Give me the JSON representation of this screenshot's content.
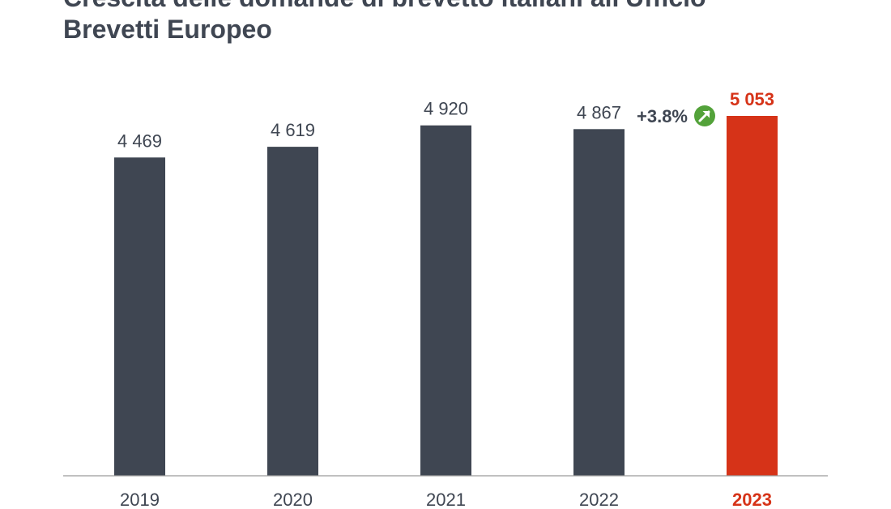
{
  "chart_data": {
    "type": "bar",
    "title": "Crescita delle domande di brevetto italiani all'Ufficio\nBrevetti Europeo",
    "xlabel": "",
    "ylabel": "",
    "categories": [
      "2019",
      "2020",
      "2021",
      "2022",
      "2023"
    ],
    "values": [
      4469,
      4619,
      4920,
      4867,
      5053
    ],
    "value_labels": [
      "4 469",
      "4 619",
      "4 920",
      "4 867",
      "5 053"
    ],
    "highlight_index": 4,
    "ylim": [
      0,
      5400
    ],
    "grid": false,
    "legend": "none",
    "annotation": {
      "text": "+3.8%",
      "icon": "up-right-arrow-icon",
      "position": "between 2022 and 2023"
    },
    "colors": {
      "bar": "#3f4652",
      "highlight": "#d63318",
      "growth_badge": "#53a23a",
      "axis": "#9a9a9a",
      "text": "#3f4652"
    }
  }
}
